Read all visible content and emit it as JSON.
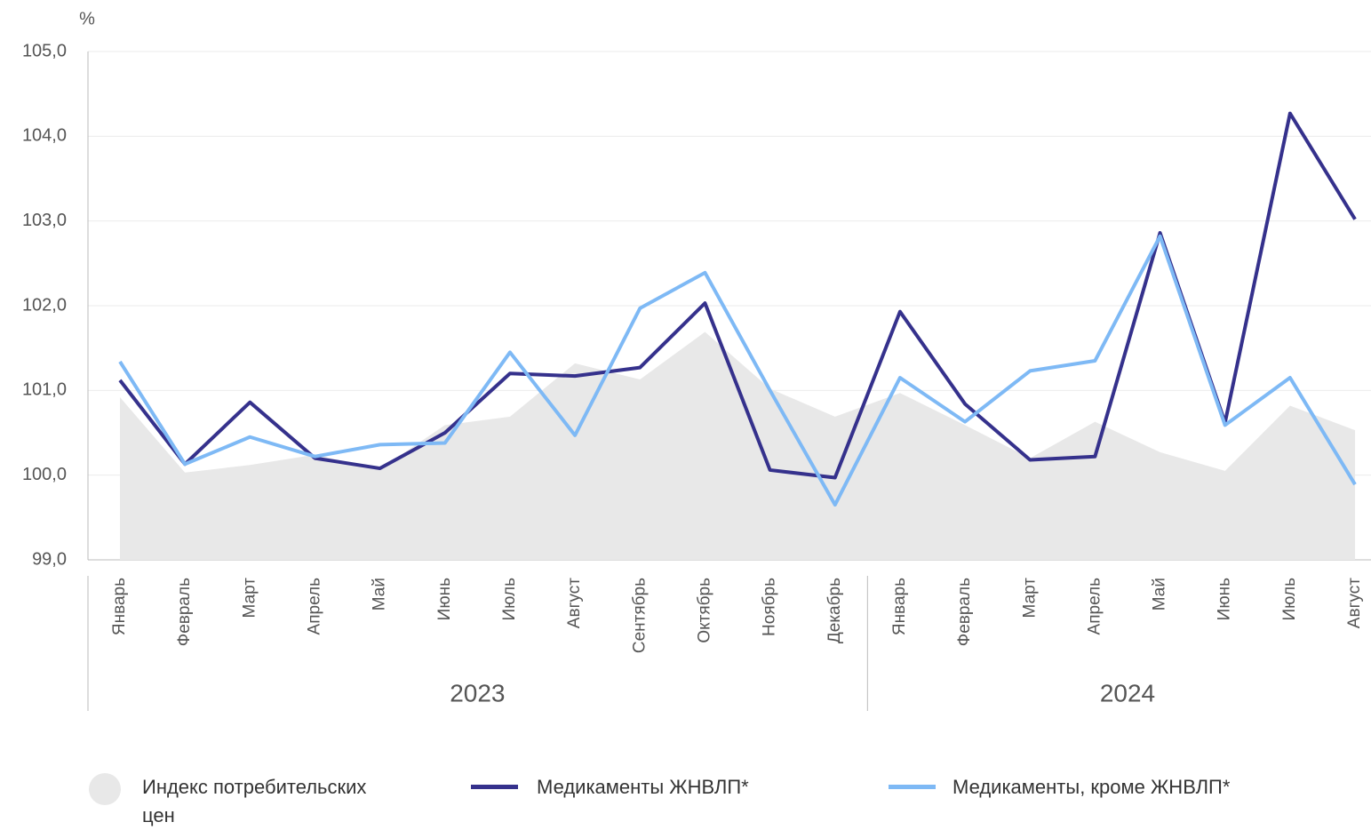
{
  "chart_data": {
    "type": "line",
    "unit": "%",
    "groups": [
      {
        "name": "2023",
        "categories": [
          "Январь",
          "Февраль",
          "Март",
          "Апрель",
          "Май",
          "Июнь",
          "Июль",
          "Август",
          "Сентябрь",
          "Октябрь",
          "Ноябрь",
          "Декабрь"
        ]
      },
      {
        "name": "2024",
        "categories": [
          "Январь",
          "Февраль",
          "Март",
          "Апрель",
          "Май",
          "Июнь",
          "Июль",
          "Август"
        ]
      }
    ],
    "series": [
      {
        "name": "Индекс потребительских цен",
        "kind": "area",
        "color": "#e8e8e8",
        "values": [
          100.92,
          100.03,
          100.12,
          100.24,
          100.07,
          100.59,
          100.69,
          101.32,
          101.13,
          101.69,
          101.02,
          100.69,
          100.97,
          100.59,
          100.2,
          100.63,
          100.27,
          100.05,
          100.82,
          100.53
        ]
      },
      {
        "name": "Медикаменты ЖНВЛП*",
        "kind": "line",
        "color": "#35318c",
        "values": [
          101.12,
          100.13,
          100.86,
          100.2,
          100.08,
          100.5,
          101.2,
          101.17,
          101.27,
          102.03,
          100.06,
          99.97,
          101.93,
          100.84,
          100.18,
          100.22,
          102.86,
          100.62,
          104.27,
          103.02
        ]
      },
      {
        "name": "Медикаменты, кроме ЖНВЛП*",
        "kind": "line",
        "color": "#7eb9f5",
        "values": [
          101.34,
          100.13,
          100.45,
          100.22,
          100.36,
          100.38,
          101.45,
          100.47,
          101.97,
          102.39,
          101.0,
          99.65,
          101.15,
          100.63,
          101.23,
          101.35,
          102.82,
          100.59,
          101.15,
          99.89
        ]
      }
    ],
    "ylim": [
      99,
      105
    ],
    "yticks": [
      {
        "value": 99,
        "label": "99,0"
      },
      {
        "value": 100,
        "label": "100,0"
      },
      {
        "value": 101,
        "label": "101,0"
      },
      {
        "value": 102,
        "label": "102,0"
      },
      {
        "value": 103,
        "label": "103,0"
      },
      {
        "value": 104,
        "label": "104,0"
      },
      {
        "value": 105,
        "label": "105,0"
      }
    ],
    "grid": true
  }
}
